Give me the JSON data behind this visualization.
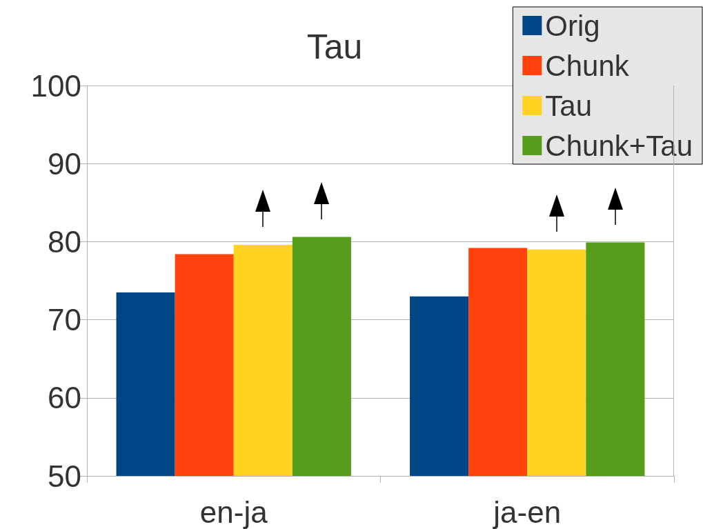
{
  "chart_data": {
    "type": "bar",
    "title": "Tau",
    "categories": [
      "en-ja",
      "ja-en"
    ],
    "series": [
      {
        "name": "Orig",
        "color": "#004586",
        "values": [
          73.5,
          73.0
        ]
      },
      {
        "name": "Chunk",
        "color": "#ff420e",
        "values": [
          78.4,
          79.2
        ]
      },
      {
        "name": "Tau",
        "color": "#ffd320",
        "values": [
          79.6,
          79.0
        ]
      },
      {
        "name": "Chunk+Tau",
        "color": "#579d1c",
        "values": [
          80.6,
          79.9
        ]
      }
    ],
    "ylim": [
      50,
      100
    ],
    "yticks": [
      50,
      60,
      70,
      80,
      90,
      100
    ],
    "grid": "y",
    "legend": "top right"
  }
}
